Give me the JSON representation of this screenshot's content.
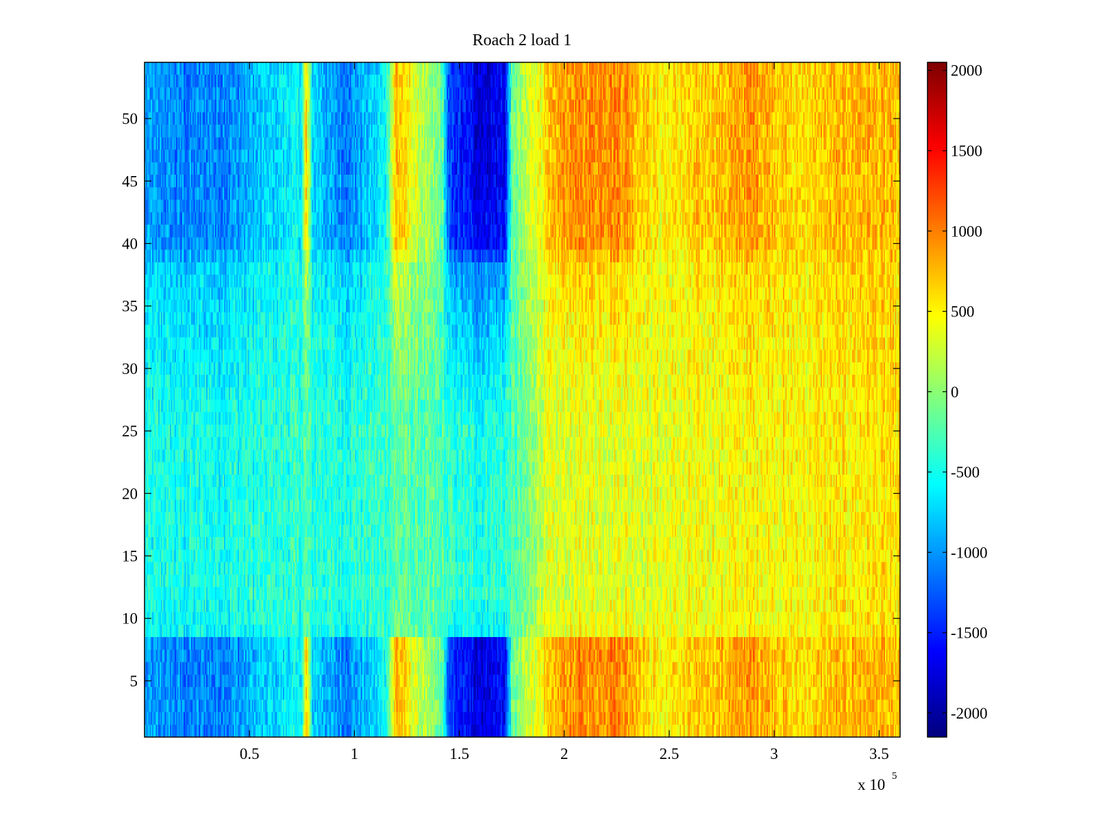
{
  "chart_data": {
    "type": "heatmap",
    "title": "Roach 2 load 1",
    "xlabel": "",
    "ylabel": "",
    "x_multiplier_label": "x 10",
    "x_multiplier_exponent": "5",
    "xlim": [
      0,
      360000
    ],
    "ylim": [
      0.5,
      54.5
    ],
    "x_ticks": [
      {
        "value": 50000,
        "label": "0.5"
      },
      {
        "value": 100000,
        "label": "1"
      },
      {
        "value": 150000,
        "label": "1.5"
      },
      {
        "value": 200000,
        "label": "2"
      },
      {
        "value": 250000,
        "label": "2.5"
      },
      {
        "value": 300000,
        "label": "3"
      },
      {
        "value": 350000,
        "label": "3.5"
      }
    ],
    "y_ticks": [
      {
        "value": 5,
        "label": "5"
      },
      {
        "value": 10,
        "label": "10"
      },
      {
        "value": 15,
        "label": "15"
      },
      {
        "value": 20,
        "label": "20"
      },
      {
        "value": 25,
        "label": "25"
      },
      {
        "value": 30,
        "label": "30"
      },
      {
        "value": 35,
        "label": "35"
      },
      {
        "value": 40,
        "label": "40"
      },
      {
        "value": 45,
        "label": "45"
      },
      {
        "value": 50,
        "label": "50"
      }
    ],
    "rows": 54,
    "colormap": "jet",
    "clim": [
      -2150,
      2050
    ],
    "colorbar_ticks": [
      {
        "value": 2000,
        "label": "2000"
      },
      {
        "value": 1500,
        "label": "1500"
      },
      {
        "value": 1000,
        "label": "1000"
      },
      {
        "value": 500,
        "label": "500"
      },
      {
        "value": 0,
        "label": "0"
      },
      {
        "value": -500,
        "label": "-500"
      },
      {
        "value": -1000,
        "label": "-1000"
      },
      {
        "value": -1500,
        "label": "-1500"
      },
      {
        "value": -2000,
        "label": "-2000"
      }
    ],
    "column_profile": [
      {
        "x": 0,
        "value": -1000
      },
      {
        "x": 20000,
        "value": -1100
      },
      {
        "x": 40000,
        "value": -1050
      },
      {
        "x": 60000,
        "value": -750
      },
      {
        "x": 75000,
        "value": -550
      },
      {
        "x": 77000,
        "value": 700
      },
      {
        "x": 80000,
        "value": -700
      },
      {
        "x": 95000,
        "value": -1100
      },
      {
        "x": 110000,
        "value": -750
      },
      {
        "x": 115000,
        "value": -500
      },
      {
        "x": 120000,
        "value": 800
      },
      {
        "x": 130000,
        "value": 250
      },
      {
        "x": 142000,
        "value": -200
      },
      {
        "x": 145000,
        "value": -1400
      },
      {
        "x": 160000,
        "value": -1750
      },
      {
        "x": 172000,
        "value": -1600
      },
      {
        "x": 175000,
        "value": -200
      },
      {
        "x": 185000,
        "value": 350
      },
      {
        "x": 200000,
        "value": 900
      },
      {
        "x": 225000,
        "value": 1000
      },
      {
        "x": 245000,
        "value": 500
      },
      {
        "x": 270000,
        "value": 700
      },
      {
        "x": 290000,
        "value": 900
      },
      {
        "x": 310000,
        "value": 600
      },
      {
        "x": 340000,
        "value": 800
      },
      {
        "x": 360000,
        "value": 700
      }
    ],
    "row_profile": [
      {
        "y": 1,
        "value": 1.0
      },
      {
        "y": 8,
        "value": 1.0
      },
      {
        "y": 9,
        "value": 0.25
      },
      {
        "y": 12,
        "value": 0.1
      },
      {
        "y": 25,
        "value": 0.12
      },
      {
        "y": 34,
        "value": 0.4
      },
      {
        "y": 38,
        "value": 0.55
      },
      {
        "y": 40,
        "value": 0.95
      },
      {
        "y": 47,
        "value": 1.0
      },
      {
        "y": 54,
        "value": 1.0
      }
    ],
    "background_trend": [
      {
        "x": 0,
        "value": -450
      },
      {
        "x": 180000,
        "value": -250
      },
      {
        "x": 190000,
        "value": 250
      },
      {
        "x": 360000,
        "value": 550
      }
    ]
  }
}
